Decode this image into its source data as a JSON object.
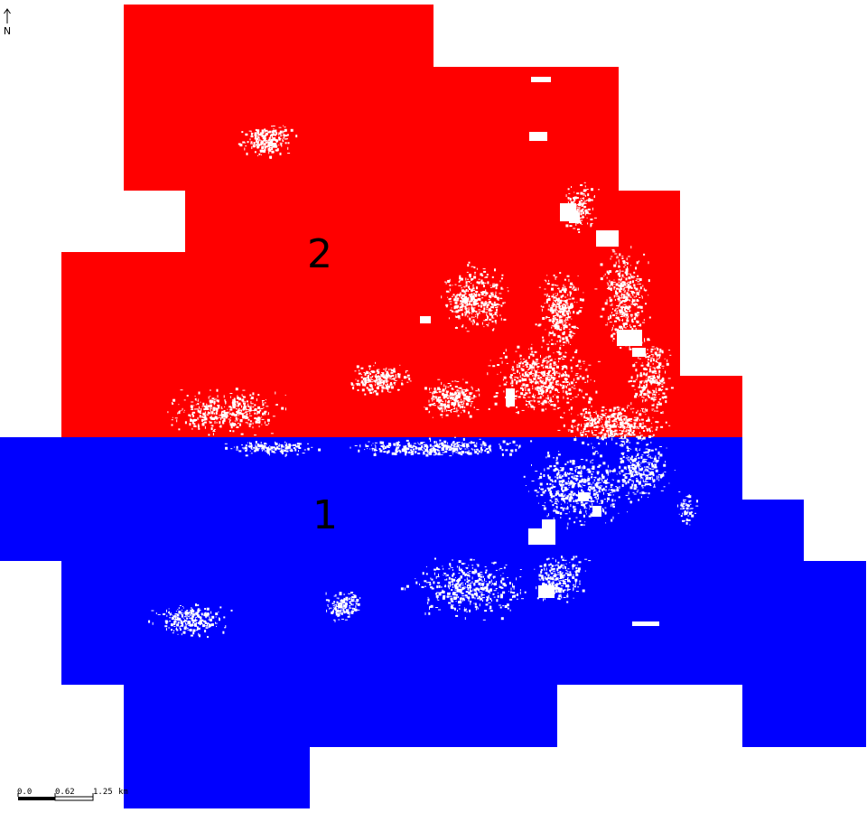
{
  "map": {
    "zones": [
      {
        "id": "1",
        "label": "1",
        "color": "#0000ff"
      },
      {
        "id": "2",
        "label": "2",
        "color": "#ff0000"
      }
    ],
    "urban_color": "#ffffff",
    "north_arrow": {
      "letter": "N"
    },
    "scale_bar": {
      "ticks": [
        "0.0",
        "0.62",
        "1.25"
      ],
      "unit": "km"
    }
  }
}
